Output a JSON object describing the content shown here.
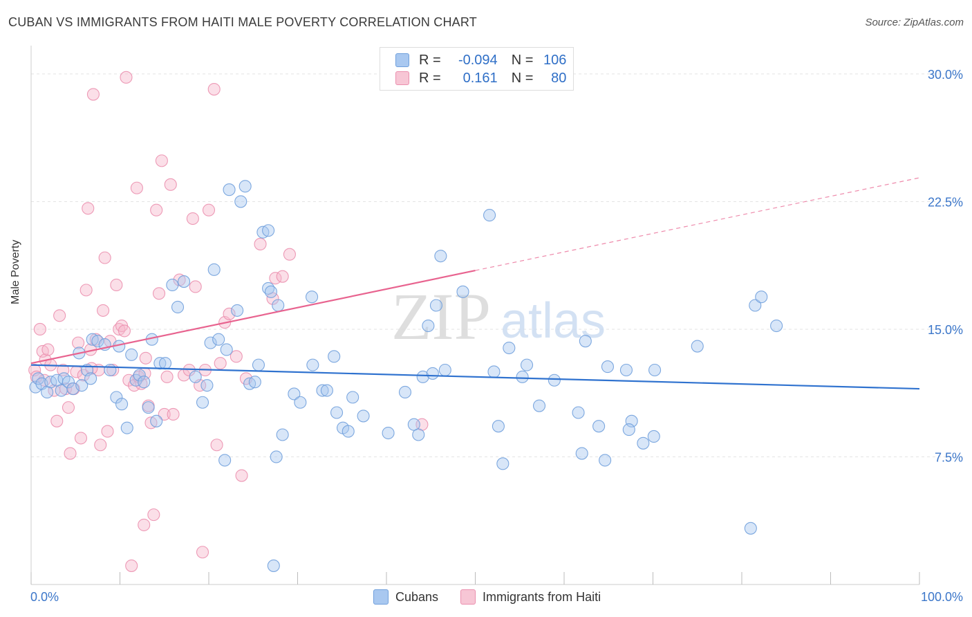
{
  "title": "CUBAN VS IMMIGRANTS FROM HAITI MALE POVERTY CORRELATION CHART",
  "source": "Source: ZipAtlas.com",
  "watermark": {
    "zip": "ZIP",
    "atlas": "atlas"
  },
  "legend": {
    "rows": [
      {
        "r_label": "R =",
        "r_value": "-0.094",
        "n_label": "N =",
        "n_value": "106"
      },
      {
        "r_label": "R =",
        "r_value": "0.161",
        "n_label": "N =",
        "n_value": "80"
      }
    ]
  },
  "bottom_legend": [
    "Cubans",
    "Immigrants from Haiti"
  ],
  "colors": {
    "cuban_fill": "#a9c8f0",
    "cuban_stroke": "#6f9fdc",
    "cuban_line": "#2f72cf",
    "haiti_fill": "#f7b8cc",
    "haiti_stroke": "#eb8fae",
    "haiti_line": "#e8638f",
    "tick_label": "#3b76c9",
    "grid": "#e3e3e3"
  },
  "chart_data": {
    "type": "scatter",
    "title": "CUBAN VS IMMIGRANTS FROM HAITI MALE POVERTY CORRELATION CHART",
    "xlabel": "",
    "ylabel": "Male Poverty",
    "x_tick_labels": [
      "0.0%",
      "100.0%"
    ],
    "y_ticks": [
      7.5,
      15.0,
      22.5,
      30.0
    ],
    "y_tick_labels": [
      "7.5%",
      "15.0%",
      "22.5%",
      "30.0%"
    ],
    "xlim": [
      0,
      100
    ],
    "ylim": [
      0,
      31.5
    ],
    "grid": true,
    "legend_placement": "top-center",
    "series": [
      {
        "name": "Cubans",
        "r": -0.094,
        "n": 106,
        "trend": {
          "x": [
            0,
            100
          ],
          "y": [
            12.9,
            11.5
          ],
          "dashed_from": null
        },
        "points": [
          [
            0.5,
            11.6
          ],
          [
            0.8,
            12.1
          ],
          [
            1.2,
            11.8
          ],
          [
            1.8,
            11.3
          ],
          [
            2.2,
            11.9
          ],
          [
            2.9,
            12.0
          ],
          [
            3.4,
            11.4
          ],
          [
            3.7,
            12.1
          ],
          [
            4.2,
            11.9
          ],
          [
            4.7,
            11.5
          ],
          [
            5.4,
            13.6
          ],
          [
            5.7,
            11.7
          ],
          [
            6.3,
            12.6
          ],
          [
            6.7,
            12.1
          ],
          [
            6.9,
            14.4
          ],
          [
            7.5,
            14.3
          ],
          [
            8.3,
            14.1
          ],
          [
            8.9,
            12.6
          ],
          [
            9.6,
            11.0
          ],
          [
            9.9,
            14.0
          ],
          [
            10.2,
            10.6
          ],
          [
            10.8,
            9.2
          ],
          [
            11.3,
            13.5
          ],
          [
            11.8,
            12.0
          ],
          [
            12.2,
            12.3
          ],
          [
            12.7,
            11.9
          ],
          [
            13.2,
            10.4
          ],
          [
            13.6,
            14.4
          ],
          [
            14.1,
            9.6
          ],
          [
            14.5,
            13.0
          ],
          [
            15.1,
            13.0
          ],
          [
            15.9,
            17.6
          ],
          [
            16.5,
            16.3
          ],
          [
            17.2,
            17.8
          ],
          [
            18.5,
            12.2
          ],
          [
            19.3,
            10.7
          ],
          [
            19.8,
            11.7
          ],
          [
            20.2,
            14.2
          ],
          [
            20.6,
            18.5
          ],
          [
            21.1,
            14.4
          ],
          [
            21.8,
            7.3
          ],
          [
            22.0,
            13.8
          ],
          [
            22.3,
            23.2
          ],
          [
            23.2,
            16.1
          ],
          [
            23.6,
            22.5
          ],
          [
            24.1,
            23.4
          ],
          [
            24.6,
            11.8
          ],
          [
            25.2,
            11.9
          ],
          [
            25.6,
            12.9
          ],
          [
            26.1,
            20.7
          ],
          [
            26.7,
            17.4
          ],
          [
            27.0,
            17.2
          ],
          [
            27.6,
            7.5
          ],
          [
            27.8,
            16.4
          ],
          [
            28.3,
            8.8
          ],
          [
            29.6,
            11.2
          ],
          [
            30.3,
            10.7
          ],
          [
            31.6,
            16.9
          ],
          [
            31.7,
            12.9
          ],
          [
            32.8,
            11.4
          ],
          [
            33.3,
            11.4
          ],
          [
            34.1,
            13.4
          ],
          [
            34.4,
            10.1
          ],
          [
            35.1,
            9.2
          ],
          [
            35.7,
            9.0
          ],
          [
            36.2,
            11.0
          ],
          [
            37.4,
            9.9
          ],
          [
            40.2,
            8.9
          ],
          [
            42.1,
            11.3
          ],
          [
            43.1,
            9.4
          ],
          [
            43.6,
            8.8
          ],
          [
            44.1,
            12.2
          ],
          [
            44.7,
            15.2
          ],
          [
            45.2,
            12.4
          ],
          [
            45.6,
            16.4
          ],
          [
            46.1,
            19.3
          ],
          [
            46.6,
            12.6
          ],
          [
            48.6,
            17.2
          ],
          [
            51.6,
            21.7
          ],
          [
            52.1,
            12.5
          ],
          [
            52.6,
            9.3
          ],
          [
            53.1,
            7.1
          ],
          [
            53.8,
            13.9
          ],
          [
            55.3,
            12.2
          ],
          [
            55.8,
            12.9
          ],
          [
            57.2,
            10.5
          ],
          [
            58.9,
            12.0
          ],
          [
            61.6,
            10.1
          ],
          [
            62.0,
            7.7
          ],
          [
            62.4,
            14.3
          ],
          [
            63.9,
            9.3
          ],
          [
            64.6,
            7.3
          ],
          [
            64.9,
            12.8
          ],
          [
            67.0,
            12.6
          ],
          [
            67.6,
            9.6
          ],
          [
            67.3,
            9.1
          ],
          [
            68.9,
            8.3
          ],
          [
            70.1,
            8.7
          ],
          [
            70.2,
            12.6
          ],
          [
            75.0,
            14.0
          ],
          [
            81.5,
            16.4
          ],
          [
            81.0,
            3.3
          ],
          [
            82.2,
            16.9
          ],
          [
            83.9,
            15.2
          ],
          [
            27.3,
            1.1
          ],
          [
            26.7,
            20.8
          ]
        ]
      },
      {
        "name": "Immigrants from Haiti",
        "r": 0.161,
        "n": 80,
        "trend": {
          "x": [
            0,
            100
          ],
          "y": [
            13.0,
            23.9
          ],
          "dashed_from": 50
        },
        "points": [
          [
            0.4,
            12.6
          ],
          [
            0.6,
            12.2
          ],
          [
            1.0,
            15.0
          ],
          [
            1.3,
            13.7
          ],
          [
            1.6,
            13.2
          ],
          [
            1.9,
            13.8
          ],
          [
            2.2,
            12.9
          ],
          [
            2.6,
            11.4
          ],
          [
            2.9,
            9.6
          ],
          [
            3.2,
            15.8
          ],
          [
            3.6,
            12.6
          ],
          [
            3.9,
            11.5
          ],
          [
            4.2,
            10.4
          ],
          [
            4.4,
            7.7
          ],
          [
            4.8,
            11.5
          ],
          [
            5.1,
            12.5
          ],
          [
            5.3,
            14.2
          ],
          [
            5.6,
            8.6
          ],
          [
            5.9,
            12.3
          ],
          [
            6.2,
            17.3
          ],
          [
            6.4,
            22.1
          ],
          [
            6.7,
            13.8
          ],
          [
            7.0,
            28.8
          ],
          [
            7.3,
            14.4
          ],
          [
            7.6,
            12.6
          ],
          [
            7.8,
            8.2
          ],
          [
            8.1,
            16.1
          ],
          [
            8.3,
            19.2
          ],
          [
            8.6,
            9.0
          ],
          [
            8.9,
            14.3
          ],
          [
            9.2,
            12.6
          ],
          [
            9.6,
            17.6
          ],
          [
            9.9,
            15.0
          ],
          [
            10.2,
            15.2
          ],
          [
            10.5,
            14.9
          ],
          [
            10.7,
            29.8
          ],
          [
            11.0,
            12.0
          ],
          [
            11.3,
            1.1
          ],
          [
            11.6,
            11.7
          ],
          [
            11.9,
            23.3
          ],
          [
            12.1,
            12.2
          ],
          [
            12.4,
            11.8
          ],
          [
            12.7,
            3.5
          ],
          [
            12.9,
            13.3
          ],
          [
            13.2,
            10.5
          ],
          [
            13.5,
            9.5
          ],
          [
            13.8,
            4.1
          ],
          [
            14.1,
            22.0
          ],
          [
            14.4,
            17.1
          ],
          [
            14.7,
            24.9
          ],
          [
            15.0,
            10.0
          ],
          [
            15.3,
            12.2
          ],
          [
            15.7,
            23.5
          ],
          [
            16.0,
            10.0
          ],
          [
            16.7,
            17.9
          ],
          [
            17.2,
            12.3
          ],
          [
            17.8,
            12.6
          ],
          [
            18.2,
            21.5
          ],
          [
            18.5,
            17.5
          ],
          [
            19.0,
            11.7
          ],
          [
            19.3,
            1.9
          ],
          [
            19.6,
            12.6
          ],
          [
            20.0,
            22.0
          ],
          [
            20.6,
            29.1
          ],
          [
            20.9,
            8.2
          ],
          [
            21.3,
            13.0
          ],
          [
            21.8,
            15.4
          ],
          [
            22.3,
            15.9
          ],
          [
            23.1,
            13.4
          ],
          [
            23.7,
            6.4
          ],
          [
            24.2,
            12.1
          ],
          [
            25.8,
            20.0
          ],
          [
            27.2,
            16.8
          ],
          [
            27.5,
            18.0
          ],
          [
            28.3,
            18.1
          ],
          [
            29.1,
            19.4
          ],
          [
            44.0,
            9.4
          ],
          [
            12.8,
            12.4
          ],
          [
            6.8,
            12.7
          ],
          [
            1.5,
            12.0
          ]
        ]
      }
    ]
  }
}
